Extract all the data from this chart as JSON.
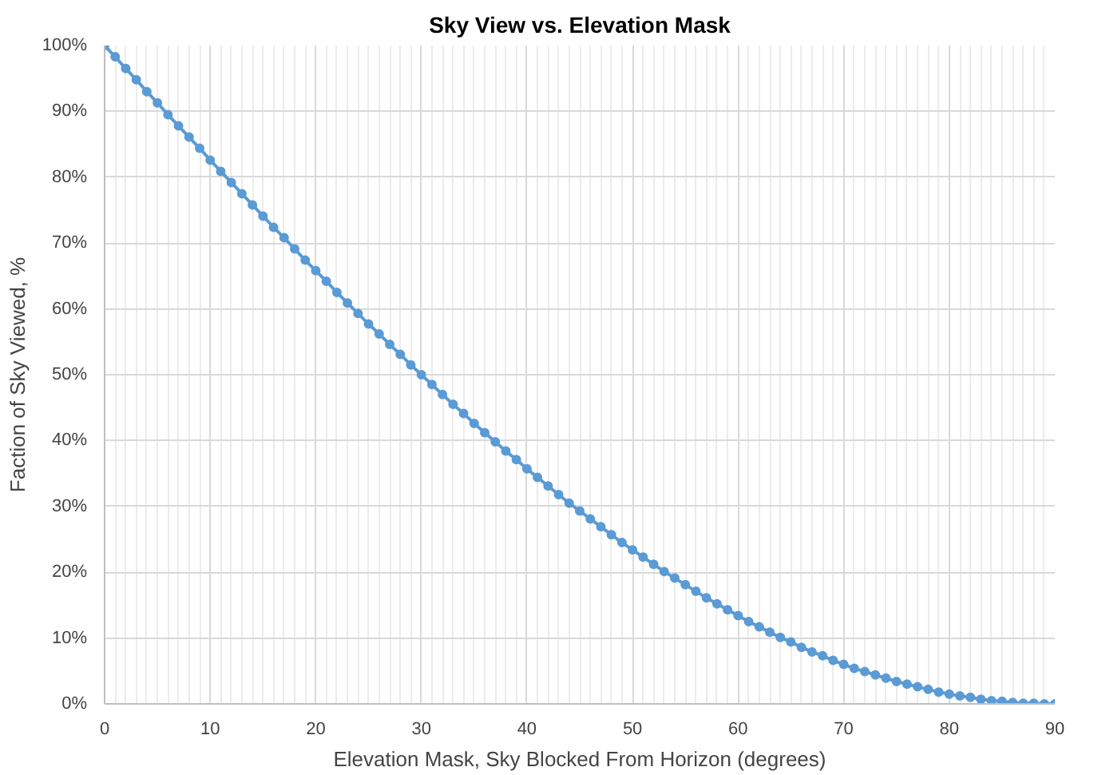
{
  "chart_data": {
    "type": "line",
    "title": "Sky View vs. Elevation Mask",
    "xlabel": "Elevation Mask, Sky Blocked From Horizon (degrees)",
    "ylabel": "Faction of Sky Viewed, %",
    "x": [
      0,
      1,
      2,
      3,
      4,
      5,
      6,
      7,
      8,
      9,
      10,
      11,
      12,
      13,
      14,
      15,
      16,
      17,
      18,
      19,
      20,
      21,
      22,
      23,
      24,
      25,
      26,
      27,
      28,
      29,
      30,
      31,
      32,
      33,
      34,
      35,
      36,
      37,
      38,
      39,
      40,
      41,
      42,
      43,
      44,
      45,
      46,
      47,
      48,
      49,
      50,
      51,
      52,
      53,
      54,
      55,
      56,
      57,
      58,
      59,
      60,
      61,
      62,
      63,
      64,
      65,
      66,
      67,
      68,
      69,
      70,
      71,
      72,
      73,
      74,
      75,
      76,
      77,
      78,
      79,
      80,
      81,
      82,
      83,
      84,
      85,
      86,
      87,
      88,
      89,
      90
    ],
    "series": [
      {
        "color": "#5b9bd5",
        "values": [
          100.0,
          98.3,
          96.5,
          94.8,
          93.0,
          91.3,
          89.5,
          87.8,
          86.1,
          84.4,
          82.6,
          80.9,
          79.2,
          77.5,
          75.8,
          74.1,
          72.4,
          70.8,
          69.1,
          67.4,
          65.8,
          64.2,
          62.5,
          60.9,
          59.3,
          57.7,
          56.2,
          54.6,
          53.1,
          51.5,
          50.0,
          48.5,
          47.0,
          45.5,
          44.1,
          42.6,
          41.2,
          39.8,
          38.4,
          37.1,
          35.7,
          34.4,
          33.1,
          31.8,
          30.5,
          29.3,
          28.1,
          26.9,
          25.7,
          24.5,
          23.4,
          22.3,
          21.2,
          20.1,
          19.1,
          18.1,
          17.1,
          16.1,
          15.2,
          14.3,
          13.4,
          12.5,
          11.7,
          10.9,
          10.1,
          9.4,
          8.6,
          7.9,
          7.3,
          6.6,
          6.0,
          5.4,
          4.9,
          4.4,
          3.9,
          3.4,
          3.0,
          2.6,
          2.2,
          1.8,
          1.5,
          1.2,
          1.0,
          0.7,
          0.5,
          0.4,
          0.2,
          0.1,
          0.1,
          0.0,
          0.0
        ]
      }
    ],
    "xlim": [
      0,
      90
    ],
    "xticks": [
      0,
      10,
      20,
      30,
      40,
      50,
      60,
      70,
      80,
      90
    ],
    "ylim": [
      0,
      100
    ],
    "yticks": [
      {
        "value": 0,
        "label": "0%"
      },
      {
        "value": 10,
        "label": "10%"
      },
      {
        "value": 20,
        "label": "20%"
      },
      {
        "value": 30,
        "label": "30%"
      },
      {
        "value": 40,
        "label": "40%"
      },
      {
        "value": 50,
        "label": "50%"
      },
      {
        "value": 60,
        "label": "60%"
      },
      {
        "value": 70,
        "label": "70%"
      },
      {
        "value": 80,
        "label": "80%"
      },
      {
        "value": 90,
        "label": "90%"
      },
      {
        "value": 100,
        "label": "100%"
      }
    ],
    "grid": true,
    "marker": "circle",
    "line_style": "solid"
  }
}
